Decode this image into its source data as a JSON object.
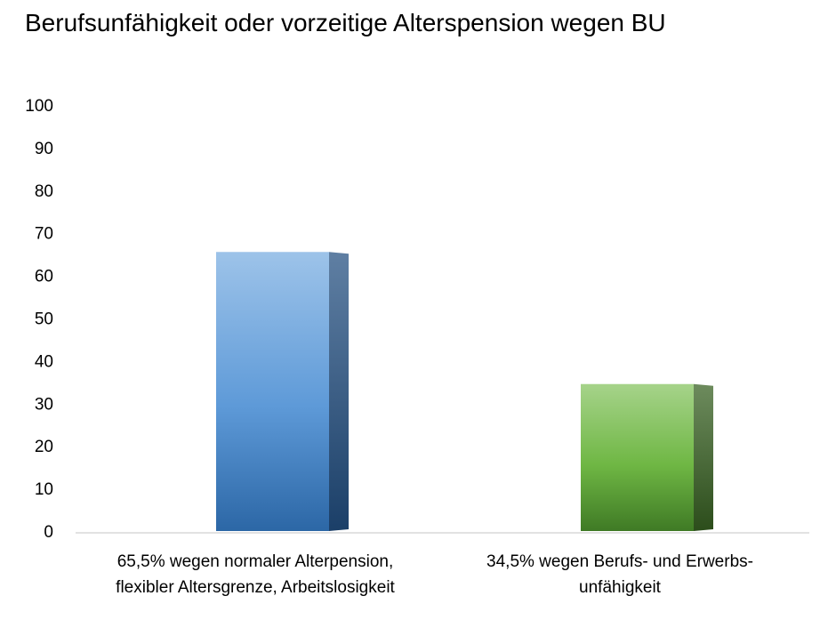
{
  "chart_data": {
    "type": "bar",
    "title": "Berufsunfähigkeit oder vorzeitige Alterspension wegen BU",
    "categories": [
      [
        "65,5% wegen normaler Alterpension,",
        "flexibler Altersgrenze, Arbeitslosigkeit"
      ],
      [
        "34,5% wegen Berufs- und Erwerbs-",
        "unfähigkeit"
      ]
    ],
    "values": [
      65.5,
      34.5
    ],
    "colors": [
      "#4f8fd0",
      "#6ab03f"
    ],
    "ylim": [
      0,
      100
    ],
    "yticks": [
      0,
      10,
      20,
      30,
      40,
      50,
      60,
      70,
      80,
      90,
      100
    ],
    "grid": false,
    "xlabel": "",
    "ylabel": ""
  }
}
